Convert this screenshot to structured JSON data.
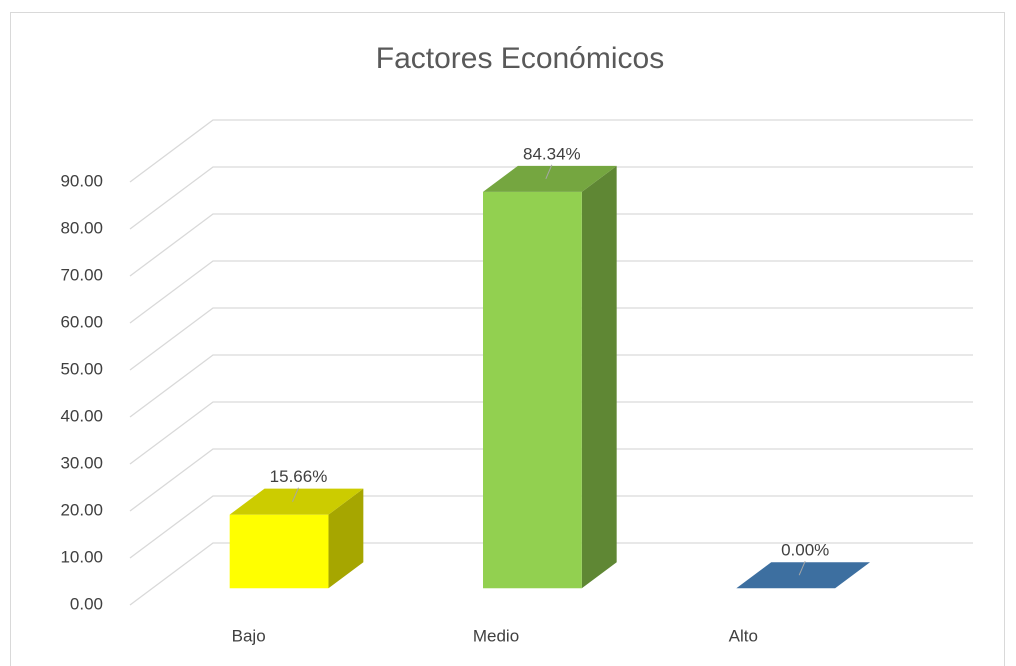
{
  "chart_data": {
    "type": "bar3d",
    "title": "Factores Económicos",
    "categories": [
      "Bajo",
      "Medio",
      "Alto"
    ],
    "values": [
      15.66,
      84.34,
      0
    ],
    "value_labels": [
      "15.66%",
      "84.34%",
      "0.00%"
    ],
    "colors": [
      "#ffff00",
      "#92d050",
      "#3d6fa0"
    ],
    "ylim": [
      0,
      90
    ],
    "yticks": [
      {
        "value": 0,
        "label": "0.00"
      },
      {
        "value": 10,
        "label": "10.00"
      },
      {
        "value": 20,
        "label": "20.00"
      },
      {
        "value": 30,
        "label": "30.00"
      },
      {
        "value": 40,
        "label": "40.00"
      },
      {
        "value": 50,
        "label": "50.00"
      },
      {
        "value": 60,
        "label": "60.00"
      },
      {
        "value": 70,
        "label": "70.00"
      },
      {
        "value": 80,
        "label": "80.00"
      },
      {
        "value": 90,
        "label": "90.00"
      }
    ],
    "grid": true
  }
}
